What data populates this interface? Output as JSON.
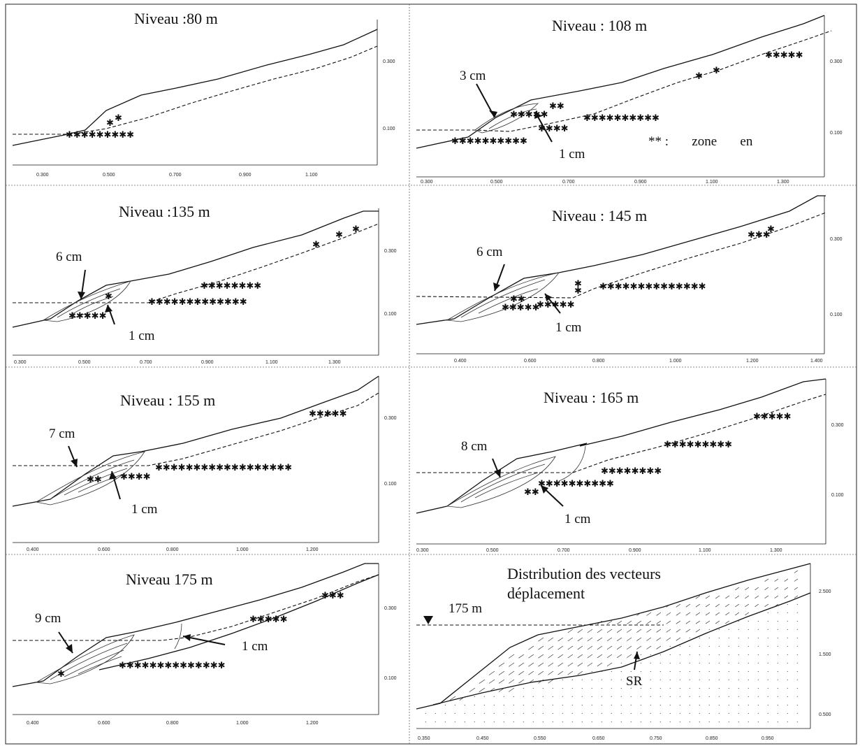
{
  "figure": {
    "panels": [
      {
        "id": "p80",
        "title": "Niveau :80 m",
        "x_ticks": [
          "0.300",
          "0.500",
          "0.700",
          "0.900",
          "1.100"
        ],
        "y_ticks": [
          "0.300",
          "0.100"
        ],
        "labels": [],
        "legend": ""
      },
      {
        "id": "p108",
        "title": "Niveau : 108 m",
        "x_ticks": [
          "0.300",
          "0.500",
          "0.700",
          "0.900",
          "1.100",
          "1.300"
        ],
        "y_ticks": [
          "0.300",
          "0.100"
        ],
        "labels": [
          "3 cm",
          "1 cm"
        ],
        "legend": "** :       zone       en"
      },
      {
        "id": "p135",
        "title": "Niveau :135 m",
        "x_ticks": [
          "0.300",
          "0.500",
          "0.700",
          "0.900",
          "1.100",
          "1.300"
        ],
        "y_ticks": [
          "0.300",
          "0.100"
        ],
        "labels": [
          "6 cm",
          "1 cm"
        ],
        "legend": ""
      },
      {
        "id": "p145",
        "title": "Niveau : 145 m",
        "x_ticks": [
          "0.400",
          "0.600",
          "0.800",
          "1.000",
          "1.200",
          "1.400"
        ],
        "y_ticks": [
          "0.300",
          "0.100"
        ],
        "labels": [
          "6 cm",
          "1 cm"
        ],
        "legend": ""
      },
      {
        "id": "p155",
        "title": "Niveau : 155 m",
        "x_ticks": [
          "0.400",
          "0.600",
          "0.800",
          "1.000",
          "1.200"
        ],
        "y_ticks": [
          "0.300",
          "0.100"
        ],
        "labels": [
          "7 cm",
          "1 cm"
        ],
        "legend": ""
      },
      {
        "id": "p165",
        "title": "Niveau : 165 m",
        "x_ticks": [
          "0.300",
          "0.500",
          "0.700",
          "0.900",
          "1.100",
          "1.300"
        ],
        "y_ticks": [
          "0.300",
          "0.100"
        ],
        "labels": [
          "8 cm",
          "1 cm"
        ],
        "legend": ""
      },
      {
        "id": "p175",
        "title": "Niveau 175 m",
        "x_ticks": [
          "0.400",
          "0.600",
          "0.800",
          "1.000",
          "1.200"
        ],
        "y_ticks": [
          "0.300",
          "0.100"
        ],
        "labels": [
          "9 cm",
          "1 cm"
        ],
        "legend": ""
      },
      {
        "id": "pdist",
        "title_line1": "Distribution des vecteurs",
        "title_line2": "déplacement",
        "x_ticks": [
          "0.350",
          "0.450",
          "0.550",
          "0.650",
          "0.750",
          "0.850",
          "0.950"
        ],
        "y_ticks": [
          "2.500",
          "1.500",
          "0.500"
        ],
        "labels": [
          "175 m",
          "SR"
        ],
        "legend": ""
      }
    ]
  }
}
